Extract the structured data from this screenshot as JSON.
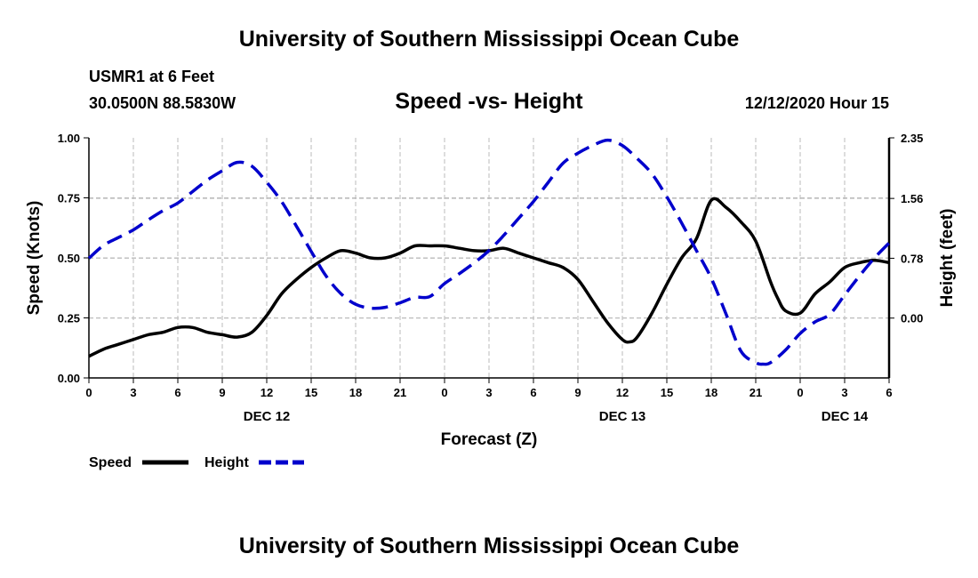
{
  "header": {
    "title": "University of Southern Mississippi Ocean Cube",
    "station": "USMR1 at 6 Feet",
    "coordinates": "30.0500N 88.5830W",
    "subtitle": "Speed -vs- Height",
    "timestamp": "12/12/2020 Hour 15"
  },
  "footer": {
    "title": "University of Southern Mississippi Ocean Cube"
  },
  "colors": {
    "speed": "#000000",
    "height": "#0000cc",
    "grid": "#bbbbbb"
  },
  "chart_data": {
    "type": "line",
    "title": "Speed -vs- Height",
    "xlabel": "Forecast (Z)",
    "ylabel": "Speed (Knots)",
    "y2label": "Height (feet)",
    "x_unit": "hours from 00Z Dec 12",
    "xlim": [
      0,
      54
    ],
    "ylim": [
      0,
      1.0
    ],
    "y2lim": [
      -0.78,
      2.35
    ],
    "x_ticks": [
      0,
      3,
      6,
      9,
      12,
      15,
      18,
      21,
      24,
      27,
      30,
      33,
      36,
      39,
      42,
      45,
      48,
      51,
      54
    ],
    "x_tick_labels": [
      "0",
      "3",
      "6",
      "9",
      "12",
      "15",
      "18",
      "21",
      "0",
      "3",
      "6",
      "9",
      "12",
      "15",
      "18",
      "21",
      "0",
      "3",
      "6"
    ],
    "y_ticks": [
      0,
      0.25,
      0.5,
      0.75,
      1.0
    ],
    "y_tick_labels": [
      "0.00",
      "0.25",
      "0.50",
      "0.75",
      "1.00"
    ],
    "y2_ticks": [
      0.0,
      0.78,
      1.56,
      2.35
    ],
    "y2_tick_labels": [
      "0.00",
      "0.78",
      "1.56",
      "2.35"
    ],
    "date_labels": [
      {
        "label": "DEC 12",
        "x": 12
      },
      {
        "label": "DEC 13",
        "x": 36
      },
      {
        "label": "DEC 14",
        "x": 51
      }
    ],
    "legend_placement": "bottom-left",
    "grid": true,
    "series": [
      {
        "name": "Speed",
        "axis": "left",
        "style": "solid",
        "x": [
          0,
          1,
          2,
          3,
          4,
          5,
          6,
          7,
          8,
          9,
          10,
          11,
          12,
          13,
          14,
          15,
          16,
          17,
          18,
          19,
          20,
          21,
          22,
          23,
          24,
          25,
          26,
          27,
          28,
          29,
          30,
          31,
          32,
          33,
          34,
          35,
          36,
          36.5,
          37,
          38,
          39,
          40,
          41,
          42,
          43,
          44,
          45,
          46,
          46.5,
          47,
          48,
          49,
          50,
          51,
          52,
          53,
          54
        ],
        "values": [
          0.09,
          0.12,
          0.14,
          0.16,
          0.18,
          0.19,
          0.21,
          0.21,
          0.19,
          0.18,
          0.17,
          0.19,
          0.26,
          0.35,
          0.41,
          0.46,
          0.5,
          0.53,
          0.52,
          0.5,
          0.5,
          0.52,
          0.55,
          0.55,
          0.55,
          0.54,
          0.53,
          0.53,
          0.54,
          0.52,
          0.5,
          0.48,
          0.46,
          0.41,
          0.32,
          0.23,
          0.16,
          0.15,
          0.17,
          0.27,
          0.39,
          0.5,
          0.58,
          0.74,
          0.71,
          0.65,
          0.57,
          0.4,
          0.33,
          0.28,
          0.27,
          0.35,
          0.4,
          0.46,
          0.48,
          0.49,
          0.48
        ]
      },
      {
        "name": "Height",
        "axis": "right",
        "style": "dashed",
        "x": [
          0,
          1,
          2,
          3,
          4,
          5,
          6,
          7,
          8,
          9,
          10,
          11,
          12,
          13,
          14,
          15,
          16,
          17,
          18,
          19,
          20,
          21,
          22,
          23,
          24,
          25,
          26,
          27,
          28,
          29,
          30,
          31,
          32,
          33,
          34,
          35,
          36,
          37,
          38,
          39,
          40,
          41,
          42,
          43,
          44,
          45,
          45.5,
          46,
          47,
          48,
          49,
          50,
          51,
          52,
          53,
          54
        ],
        "values": [
          0.78,
          0.95,
          1.05,
          1.15,
          1.28,
          1.4,
          1.5,
          1.65,
          1.8,
          1.92,
          2.03,
          1.98,
          1.77,
          1.52,
          1.2,
          0.87,
          0.55,
          0.32,
          0.18,
          0.13,
          0.14,
          0.2,
          0.27,
          0.28,
          0.45,
          0.58,
          0.72,
          0.88,
          1.08,
          1.3,
          1.52,
          1.77,
          2.02,
          2.15,
          2.25,
          2.32,
          2.25,
          2.08,
          1.88,
          1.58,
          1.24,
          0.88,
          0.52,
          0.05,
          -0.43,
          -0.58,
          -0.6,
          -0.58,
          -0.42,
          -0.2,
          -0.05,
          0.05,
          0.3,
          0.55,
          0.78,
          0.98
        ]
      }
    ]
  }
}
